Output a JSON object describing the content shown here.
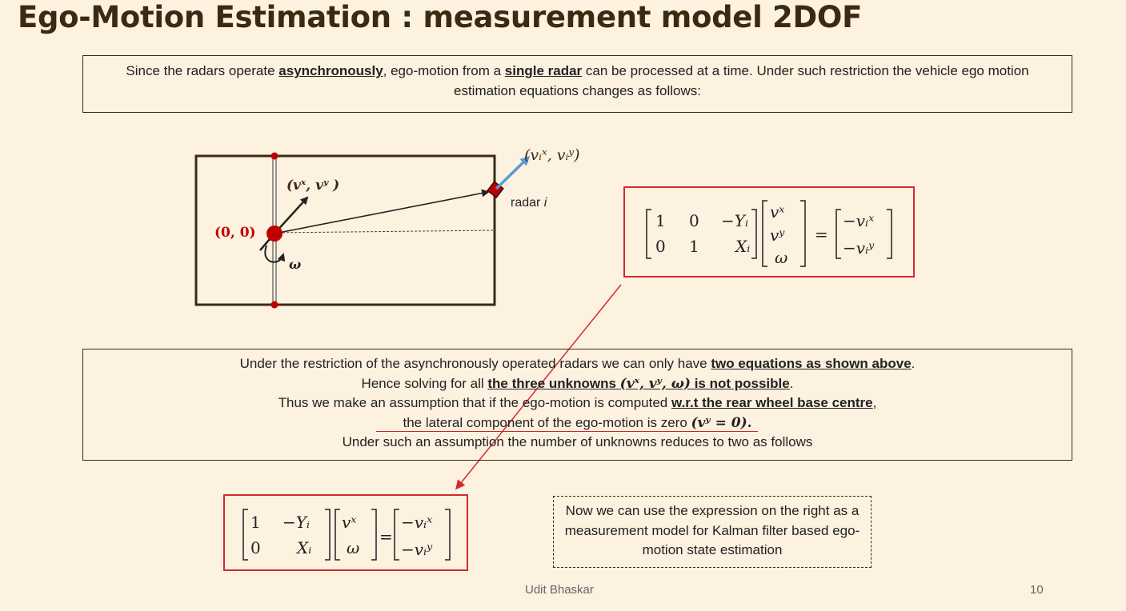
{
  "title": "Ego-Motion Estimation : measurement model 2DOF",
  "intro": {
    "t1": "Since the radars operate ",
    "b1": "asynchronously",
    "t2": ", ego-motion from a ",
    "b2": "single radar",
    "t3": " can be processed at a time. Under such restriction the vehicle ego motion estimation equations changes as follows:"
  },
  "diagram": {
    "velocity_label": "(vˣ, vʸ )",
    "origin_label": "(0, 0)",
    "omega_label": "ω",
    "radar_velocity_label": "(vᵢˣ, vᵢʸ)",
    "radar_label_prefix": "radar ",
    "radar_label_index": "i"
  },
  "matrix_3dof": {
    "A": [
      [
        "1",
        "0",
        "−Yᵢ"
      ],
      [
        "0",
        "1",
        "Xᵢ"
      ]
    ],
    "x": [
      "vˣ",
      "vʸ",
      "ω"
    ],
    "eq": "=",
    "b": [
      "−vᵢˣ",
      "−vᵢʸ"
    ]
  },
  "explanation": {
    "l1a": "Under the restriction of the asynchronously operated radars we can only have ",
    "l1b": "two equations as shown above",
    "l1c": ".",
    "l2a": "Hence solving for all ",
    "l2b": "the three unknowns ",
    "l2m": "(vˣ, vʸ, ω)",
    "l2c": " is not possible",
    "l2d": ".",
    "l3a": "Thus we make an assumption that if the ego-motion is computed ",
    "l3b": "w.r.t the rear wheel base centre",
    "l3c": ",",
    "l4a": "the lateral component of the ego-motion is zero ",
    "l4m": "(vʸ = 0).",
    "l5": "Under such an assumption the number of unknowns reduces to two as follows"
  },
  "matrix_2dof": {
    "A": [
      [
        "1",
        "−Yᵢ"
      ],
      [
        "0",
        "Xᵢ"
      ]
    ],
    "x": [
      "vˣ",
      "ω"
    ],
    "eq": "=",
    "b": [
      "−vᵢˣ",
      "−vᵢʸ"
    ]
  },
  "note": "Now we can use the expression on the right as a measurement model for Kalman filter based ego-motion state estimation",
  "footer": "Udit Bhaskar",
  "page_number": "10",
  "colors": {
    "background": "#fdf1e0",
    "title": "#3a2a12",
    "accent_red": "#d32a30",
    "arrow_blue": "#5b9bd5"
  }
}
